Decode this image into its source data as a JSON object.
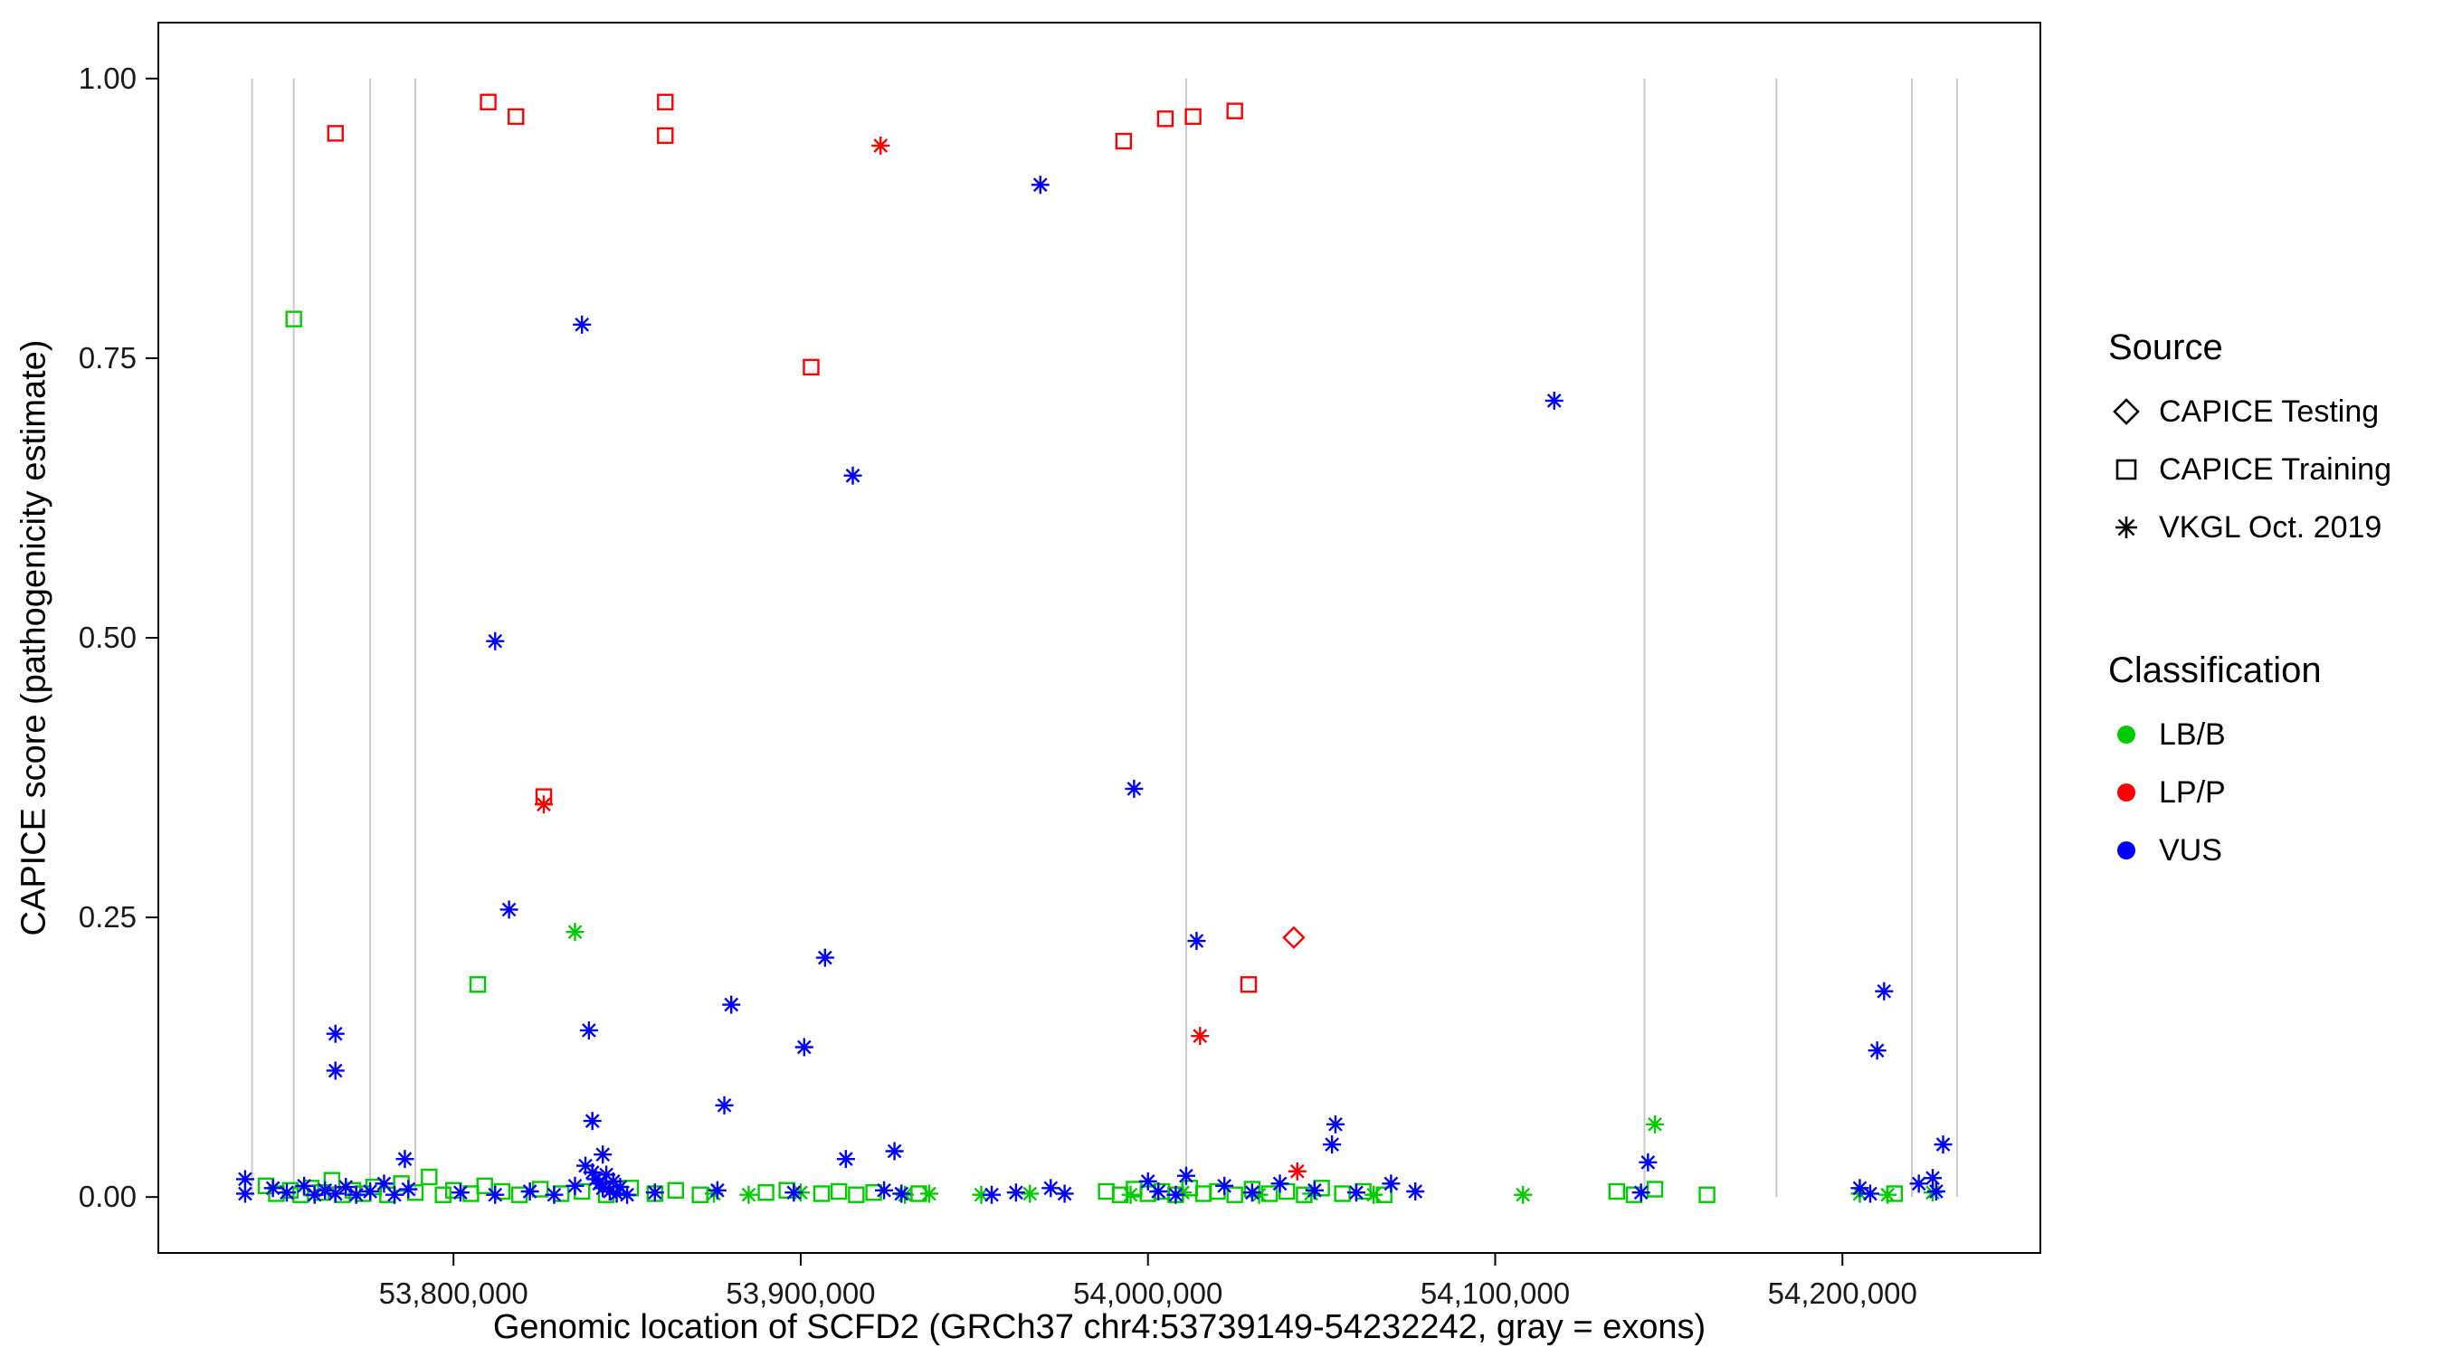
{
  "chart_data": {
    "type": "scatter",
    "title": "",
    "xlabel": "Genomic location of SCFD2 (GRCh37 chr4:53739149-54232242, gray = exons)",
    "ylabel": "CAPICE score (pathogenicity estimate)",
    "xlim": [
      53715000,
      54257000
    ],
    "ylim": [
      -0.05,
      1.05
    ],
    "grid": false,
    "legend_position": "right",
    "x_ticks": [
      {
        "value": 53800000,
        "label": "53,800,000"
      },
      {
        "value": 53900000,
        "label": "53,900,000"
      },
      {
        "value": 54000000,
        "label": "54,000,000"
      },
      {
        "value": 54100000,
        "label": "54,100,000"
      },
      {
        "value": 54200000,
        "label": "54,200,000"
      }
    ],
    "y_ticks": [
      {
        "value": 0.0,
        "label": "0.00"
      },
      {
        "value": 0.25,
        "label": "0.25"
      },
      {
        "value": 0.5,
        "label": "0.50"
      },
      {
        "value": 0.75,
        "label": "0.75"
      },
      {
        "value": 1.0,
        "label": "1.00"
      }
    ],
    "exon_color": "#c9c9c9",
    "exon_lines": [
      53742000,
      53754000,
      53776000,
      53789000,
      54011000,
      54143000,
      54181000,
      54220000,
      54233000
    ],
    "series": [
      {
        "source": "CAPICE Training",
        "classification": "LB/B",
        "marker": "square",
        "color": "#00cc00",
        "points": [
          [
            53754000,
            0.785
          ],
          [
            53807000,
            0.19
          ],
          [
            53746000,
            0.01
          ],
          [
            53749000,
            0.003
          ],
          [
            53753000,
            0.006
          ],
          [
            53756000,
            0.002
          ],
          [
            53759000,
            0.008
          ],
          [
            53762000,
            0.004
          ],
          [
            53765000,
            0.015
          ],
          [
            53768000,
            0.002
          ],
          [
            53771000,
            0.006
          ],
          [
            53774000,
            0.003
          ],
          [
            53777000,
            0.009
          ],
          [
            53781000,
            0.002
          ],
          [
            53785000,
            0.012
          ],
          [
            53789000,
            0.004
          ],
          [
            53793000,
            0.018
          ],
          [
            53797000,
            0.002
          ],
          [
            53800000,
            0.006
          ],
          [
            53805000,
            0.003
          ],
          [
            53809000,
            0.01
          ],
          [
            53814000,
            0.005
          ],
          [
            53819000,
            0.002
          ],
          [
            53825000,
            0.007
          ],
          [
            53831000,
            0.003
          ],
          [
            53837000,
            0.005
          ],
          [
            53844000,
            0.002
          ],
          [
            53851000,
            0.008
          ],
          [
            53858000,
            0.003
          ],
          [
            53864000,
            0.006
          ],
          [
            53871000,
            0.002
          ],
          [
            53890000,
            0.004
          ],
          [
            53896000,
            0.006
          ],
          [
            53906000,
            0.003
          ],
          [
            53911000,
            0.005
          ],
          [
            53916000,
            0.002
          ],
          [
            53921000,
            0.004
          ],
          [
            53934000,
            0.003
          ],
          [
            53988000,
            0.005
          ],
          [
            53992000,
            0.002
          ],
          [
            53996000,
            0.007
          ],
          [
            54000000,
            0.003
          ],
          [
            54004000,
            0.005
          ],
          [
            54008000,
            0.002
          ],
          [
            54012000,
            0.008
          ],
          [
            54016000,
            0.003
          ],
          [
            54020000,
            0.005
          ],
          [
            54025000,
            0.002
          ],
          [
            54030000,
            0.007
          ],
          [
            54035000,
            0.003
          ],
          [
            54040000,
            0.005
          ],
          [
            54045000,
            0.002
          ],
          [
            54050000,
            0.008
          ],
          [
            54056000,
            0.003
          ],
          [
            54062000,
            0.005
          ],
          [
            54068000,
            0.002
          ],
          [
            54135000,
            0.005
          ],
          [
            54140000,
            0.002
          ],
          [
            54146000,
            0.007
          ],
          [
            54161000,
            0.002
          ],
          [
            54215000,
            0.003
          ]
        ]
      },
      {
        "source": "VKGL Oct. 2019",
        "classification": "LB/B",
        "marker": "asterisk",
        "color": "#00cc00",
        "points": [
          [
            53835000,
            0.237
          ],
          [
            54146000,
            0.065
          ],
          [
            53875000,
            0.003
          ],
          [
            53885000,
            0.002
          ],
          [
            53900000,
            0.004
          ],
          [
            53930000,
            0.002
          ],
          [
            53937000,
            0.003
          ],
          [
            53952000,
            0.002
          ],
          [
            53966000,
            0.003
          ],
          [
            53995000,
            0.002
          ],
          [
            54010000,
            0.004
          ],
          [
            54032000,
            0.002
          ],
          [
            54047000,
            0.003
          ],
          [
            54065000,
            0.002
          ],
          [
            54108000,
            0.002
          ],
          [
            54205000,
            0.003
          ],
          [
            54213000,
            0.002
          ],
          [
            54226000,
            0.004
          ]
        ]
      },
      {
        "source": "VKGL Oct. 2019",
        "classification": "VUS",
        "marker": "asterisk",
        "color": "#0000ff",
        "points": [
          [
            53969000,
            0.905
          ],
          [
            53837000,
            0.78
          ],
          [
            54117000,
            0.712
          ],
          [
            53915000,
            0.645
          ],
          [
            53812000,
            0.497
          ],
          [
            53996000,
            0.365
          ],
          [
            53816000,
            0.257
          ],
          [
            54014000,
            0.229
          ],
          [
            53907000,
            0.214
          ],
          [
            54212000,
            0.184
          ],
          [
            53880000,
            0.172
          ],
          [
            53839000,
            0.149
          ],
          [
            53766000,
            0.146
          ],
          [
            53901000,
            0.134
          ],
          [
            54210000,
            0.131
          ],
          [
            53766000,
            0.113
          ],
          [
            53878000,
            0.082
          ],
          [
            53840000,
            0.068
          ],
          [
            54054000,
            0.065
          ],
          [
            54053000,
            0.047
          ],
          [
            54229000,
            0.047
          ],
          [
            53927000,
            0.041
          ],
          [
            53843000,
            0.038
          ],
          [
            53913000,
            0.034
          ],
          [
            53786000,
            0.034
          ],
          [
            54144000,
            0.031
          ],
          [
            53838000,
            0.028
          ],
          [
            54011000,
            0.019
          ],
          [
            54226000,
            0.017
          ],
          [
            53740000,
            0.016
          ],
          [
            53740000,
            0.003
          ],
          [
            53748000,
            0.008
          ],
          [
            53752000,
            0.004
          ],
          [
            53757000,
            0.01
          ],
          [
            53760000,
            0.002
          ],
          [
            53763000,
            0.006
          ],
          [
            53766000,
            0.003
          ],
          [
            53769000,
            0.009
          ],
          [
            53772000,
            0.002
          ],
          [
            53776000,
            0.005
          ],
          [
            53780000,
            0.012
          ],
          [
            53783000,
            0.002
          ],
          [
            53787000,
            0.007
          ],
          [
            53802000,
            0.004
          ],
          [
            53812000,
            0.002
          ],
          [
            53822000,
            0.005
          ],
          [
            53829000,
            0.002
          ],
          [
            53835000,
            0.01
          ],
          [
            53840000,
            0.022
          ],
          [
            53841000,
            0.016
          ],
          [
            53842000,
            0.012
          ],
          [
            53843000,
            0.008
          ],
          [
            53844000,
            0.02
          ],
          [
            53845000,
            0.005
          ],
          [
            53846000,
            0.014
          ],
          [
            53847000,
            0.003
          ],
          [
            53848000,
            0.009
          ],
          [
            53850000,
            0.002
          ],
          [
            53858000,
            0.004
          ],
          [
            53876000,
            0.006
          ],
          [
            53898000,
            0.004
          ],
          [
            53924000,
            0.006
          ],
          [
            53929000,
            0.003
          ],
          [
            53955000,
            0.002
          ],
          [
            53962000,
            0.004
          ],
          [
            53972000,
            0.008
          ],
          [
            53976000,
            0.003
          ],
          [
            54000000,
            0.014
          ],
          [
            54003000,
            0.005
          ],
          [
            54008000,
            0.002
          ],
          [
            54022000,
            0.01
          ],
          [
            54030000,
            0.004
          ],
          [
            54038000,
            0.012
          ],
          [
            54048000,
            0.006
          ],
          [
            54060000,
            0.004
          ],
          [
            54070000,
            0.012
          ],
          [
            54077000,
            0.005
          ],
          [
            54142000,
            0.004
          ],
          [
            54205000,
            0.008
          ],
          [
            54208000,
            0.003
          ],
          [
            54222000,
            0.012
          ],
          [
            54227000,
            0.005
          ]
        ]
      },
      {
        "source": "CAPICE Training",
        "classification": "LP/P",
        "marker": "square",
        "color": "#ff0000",
        "points": [
          [
            53766000,
            0.951
          ],
          [
            53810000,
            0.979
          ],
          [
            53818000,
            0.966
          ],
          [
            53861000,
            0.979
          ],
          [
            53861000,
            0.949
          ],
          [
            53903000,
            0.742
          ],
          [
            53993000,
            0.944
          ],
          [
            54005000,
            0.964
          ],
          [
            54013000,
            0.966
          ],
          [
            54025000,
            0.971
          ],
          [
            53826000,
            0.358
          ],
          [
            54029000,
            0.19
          ]
        ]
      },
      {
        "source": "VKGL Oct. 2019",
        "classification": "LP/P",
        "marker": "asterisk",
        "color": "#ff0000",
        "points": [
          [
            53923000,
            0.94
          ],
          [
            53826000,
            0.351
          ],
          [
            54015000,
            0.144
          ],
          [
            54043000,
            0.023
          ]
        ]
      },
      {
        "source": "CAPICE Testing",
        "classification": "LP/P",
        "marker": "diamond",
        "color": "#ff0000",
        "points": [
          [
            54042000,
            0.232
          ]
        ]
      }
    ]
  },
  "legend": {
    "source": {
      "title": "Source",
      "items": [
        {
          "label": "CAPICE Testing",
          "marker": "diamond"
        },
        {
          "label": "CAPICE Training",
          "marker": "square"
        },
        {
          "label": "VKGL Oct. 2019",
          "marker": "asterisk"
        }
      ]
    },
    "classification": {
      "title": "Classification",
      "items": [
        {
          "label": "LB/B",
          "color": "#00cc00"
        },
        {
          "label": "LP/P",
          "color": "#ff0000"
        },
        {
          "label": "VUS",
          "color": "#0000ff"
        }
      ]
    }
  }
}
